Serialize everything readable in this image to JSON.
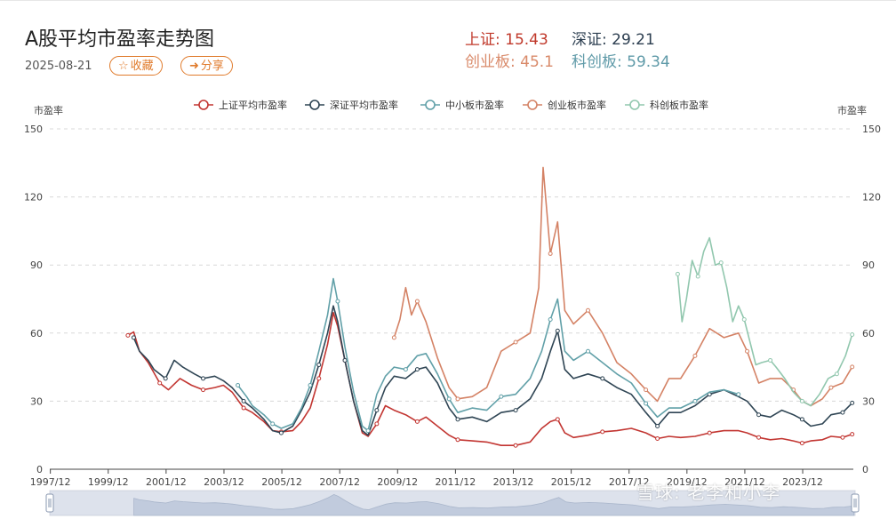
{
  "header": {
    "title": "A股平均市盈率走势图",
    "date": "2025-08-21",
    "favorite_label": "收藏",
    "share_label": "分享"
  },
  "stats": [
    {
      "label": "上证:",
      "value": "15.43",
      "color": "#c0392b"
    },
    {
      "label": "深证:",
      "value": "29.21",
      "color": "#2c3e50"
    },
    {
      "label": "创业板:",
      "value": "45.1",
      "color": "#d98a6a"
    },
    {
      "label": "科创板:",
      "value": "59.34",
      "color": "#5f9aa8"
    }
  ],
  "watermark": "雪球: 老李和小李",
  "chart_data": {
    "type": "line",
    "ylabel_left": "市盈率",
    "ylabel_right": "市盈率",
    "ylim": [
      0,
      150
    ],
    "yticks": [
      0,
      30,
      60,
      90,
      120,
      150
    ],
    "xlim": [
      1997.9,
      2025.67
    ],
    "xtick_labels": [
      "1997/12",
      "1999/12",
      "2001/12",
      "2003/12",
      "2005/12",
      "2007/12",
      "2009/12",
      "2011/12",
      "2013/12",
      "2015/12",
      "2017/12",
      "2019/12",
      "2021/12",
      "2023/12"
    ],
    "xtick_values": [
      1997.92,
      1999.92,
      2001.92,
      2003.92,
      2005.92,
      2007.92,
      2009.92,
      2011.92,
      2013.92,
      2015.92,
      2017.92,
      2019.92,
      2021.92,
      2023.92
    ],
    "grid": true,
    "legend_position": "top",
    "series": [
      {
        "name": "上证平均市盈率",
        "color": "#c23531",
        "points": [
          [
            2000.6,
            59
          ],
          [
            2000.8,
            60.5
          ],
          [
            2001.0,
            52
          ],
          [
            2001.3,
            47
          ],
          [
            2001.7,
            38
          ],
          [
            2002.0,
            35
          ],
          [
            2002.4,
            40
          ],
          [
            2002.8,
            37
          ],
          [
            2003.2,
            35
          ],
          [
            2003.6,
            36
          ],
          [
            2003.9,
            37
          ],
          [
            2004.2,
            34
          ],
          [
            2004.6,
            27
          ],
          [
            2004.9,
            25
          ],
          [
            2005.3,
            21
          ],
          [
            2005.6,
            17
          ],
          [
            2005.9,
            16.5
          ],
          [
            2006.3,
            17
          ],
          [
            2006.6,
            21
          ],
          [
            2006.9,
            27
          ],
          [
            2007.2,
            40
          ],
          [
            2007.5,
            55
          ],
          [
            2007.7,
            69
          ],
          [
            2007.85,
            63
          ],
          [
            2008.1,
            48
          ],
          [
            2008.4,
            30
          ],
          [
            2008.7,
            16
          ],
          [
            2008.9,
            14.5
          ],
          [
            2009.2,
            20
          ],
          [
            2009.5,
            28
          ],
          [
            2009.8,
            26
          ],
          [
            2010.2,
            24
          ],
          [
            2010.6,
            21
          ],
          [
            2010.9,
            23
          ],
          [
            2011.3,
            19
          ],
          [
            2011.7,
            15
          ],
          [
            2012.0,
            13
          ],
          [
            2012.5,
            12.5
          ],
          [
            2013.0,
            12
          ],
          [
            2013.5,
            10.5
          ],
          [
            2014.0,
            10.5
          ],
          [
            2014.5,
            12
          ],
          [
            2014.9,
            18
          ],
          [
            2015.2,
            21
          ],
          [
            2015.45,
            22
          ],
          [
            2015.7,
            16
          ],
          [
            2016.0,
            14
          ],
          [
            2016.5,
            15
          ],
          [
            2017.0,
            16.5
          ],
          [
            2017.5,
            17
          ],
          [
            2018.0,
            18
          ],
          [
            2018.5,
            16
          ],
          [
            2018.9,
            13.5
          ],
          [
            2019.3,
            14.5
          ],
          [
            2019.7,
            14
          ],
          [
            2020.2,
            14.5
          ],
          [
            2020.7,
            16
          ],
          [
            2021.2,
            17
          ],
          [
            2021.7,
            17
          ],
          [
            2022.0,
            16
          ],
          [
            2022.4,
            14
          ],
          [
            2022.8,
            13
          ],
          [
            2023.2,
            13.5
          ],
          [
            2023.6,
            12.5
          ],
          [
            2023.9,
            11.5
          ],
          [
            2024.2,
            12.5
          ],
          [
            2024.6,
            13
          ],
          [
            2024.9,
            14.5
          ],
          [
            2025.3,
            14
          ],
          [
            2025.63,
            15.43
          ]
        ]
      },
      {
        "name": "深证平均市盈率",
        "color": "#2f4554",
        "points": [
          [
            2000.8,
            58
          ],
          [
            2001.0,
            52
          ],
          [
            2001.3,
            48
          ],
          [
            2001.5,
            44
          ],
          [
            2001.9,
            40
          ],
          [
            2002.2,
            48
          ],
          [
            2002.5,
            45
          ],
          [
            2002.9,
            42
          ],
          [
            2003.2,
            40
          ],
          [
            2003.6,
            41
          ],
          [
            2003.9,
            39
          ],
          [
            2004.2,
            36
          ],
          [
            2004.6,
            30
          ],
          [
            2004.9,
            27
          ],
          [
            2005.3,
            22
          ],
          [
            2005.6,
            17
          ],
          [
            2005.9,
            16
          ],
          [
            2006.3,
            19
          ],
          [
            2006.6,
            26
          ],
          [
            2006.9,
            34
          ],
          [
            2007.2,
            46
          ],
          [
            2007.5,
            60
          ],
          [
            2007.7,
            72
          ],
          [
            2007.85,
            65
          ],
          [
            2008.1,
            48
          ],
          [
            2008.4,
            30
          ],
          [
            2008.7,
            17
          ],
          [
            2008.9,
            15
          ],
          [
            2009.2,
            26
          ],
          [
            2009.5,
            36
          ],
          [
            2009.8,
            41
          ],
          [
            2010.2,
            40
          ],
          [
            2010.6,
            44
          ],
          [
            2010.9,
            45
          ],
          [
            2011.3,
            38
          ],
          [
            2011.7,
            27
          ],
          [
            2012.0,
            22
          ],
          [
            2012.5,
            23
          ],
          [
            2013.0,
            21
          ],
          [
            2013.5,
            25
          ],
          [
            2014.0,
            26
          ],
          [
            2014.5,
            31
          ],
          [
            2014.9,
            40
          ],
          [
            2015.2,
            52
          ],
          [
            2015.45,
            61
          ],
          [
            2015.7,
            44
          ],
          [
            2016.0,
            40
          ],
          [
            2016.5,
            42
          ],
          [
            2017.0,
            40
          ],
          [
            2017.5,
            36
          ],
          [
            2018.0,
            33
          ],
          [
            2018.5,
            25
          ],
          [
            2018.9,
            19
          ],
          [
            2019.3,
            25
          ],
          [
            2019.7,
            25
          ],
          [
            2020.2,
            28
          ],
          [
            2020.7,
            33
          ],
          [
            2021.2,
            35
          ],
          [
            2021.7,
            32
          ],
          [
            2022.0,
            30
          ],
          [
            2022.4,
            24
          ],
          [
            2022.8,
            23
          ],
          [
            2023.2,
            26
          ],
          [
            2023.6,
            24
          ],
          [
            2023.9,
            22
          ],
          [
            2024.2,
            19
          ],
          [
            2024.6,
            20
          ],
          [
            2024.9,
            24
          ],
          [
            2025.3,
            25
          ],
          [
            2025.63,
            29.21
          ]
        ]
      },
      {
        "name": "中小板市盈率",
        "color": "#61a0a8",
        "points": [
          [
            2004.4,
            37
          ],
          [
            2004.7,
            32
          ],
          [
            2004.9,
            28
          ],
          [
            2005.3,
            24
          ],
          [
            2005.6,
            20
          ],
          [
            2005.9,
            18
          ],
          [
            2006.3,
            20
          ],
          [
            2006.6,
            27
          ],
          [
            2006.9,
            37
          ],
          [
            2007.2,
            52
          ],
          [
            2007.5,
            68
          ],
          [
            2007.7,
            84
          ],
          [
            2007.85,
            74
          ],
          [
            2008.1,
            54
          ],
          [
            2008.4,
            34
          ],
          [
            2008.7,
            19
          ],
          [
            2008.9,
            17
          ],
          [
            2009.2,
            33
          ],
          [
            2009.5,
            41
          ],
          [
            2009.8,
            45
          ],
          [
            2010.2,
            44
          ],
          [
            2010.6,
            50
          ],
          [
            2010.9,
            51
          ],
          [
            2011.3,
            42
          ],
          [
            2011.7,
            31
          ],
          [
            2012.0,
            25
          ],
          [
            2012.5,
            27
          ],
          [
            2013.0,
            26
          ],
          [
            2013.5,
            32
          ],
          [
            2014.0,
            33
          ],
          [
            2014.5,
            40
          ],
          [
            2014.9,
            52
          ],
          [
            2015.2,
            66
          ],
          [
            2015.45,
            75
          ],
          [
            2015.7,
            52
          ],
          [
            2016.0,
            48
          ],
          [
            2016.5,
            52
          ],
          [
            2017.0,
            47
          ],
          [
            2017.5,
            42
          ],
          [
            2018.0,
            38
          ],
          [
            2018.5,
            29
          ],
          [
            2018.9,
            23
          ],
          [
            2019.3,
            27
          ],
          [
            2019.7,
            27
          ],
          [
            2020.2,
            30
          ],
          [
            2020.7,
            34
          ],
          [
            2021.2,
            35
          ],
          [
            2021.7,
            33
          ]
        ]
      },
      {
        "name": "创业板市盈率",
        "color": "#d48265",
        "points": [
          [
            2009.8,
            58
          ],
          [
            2010.0,
            66
          ],
          [
            2010.2,
            80
          ],
          [
            2010.4,
            68
          ],
          [
            2010.6,
            74
          ],
          [
            2010.9,
            65
          ],
          [
            2011.3,
            49
          ],
          [
            2011.7,
            36
          ],
          [
            2012.0,
            31
          ],
          [
            2012.5,
            32
          ],
          [
            2013.0,
            36
          ],
          [
            2013.5,
            52
          ],
          [
            2014.0,
            56
          ],
          [
            2014.5,
            60
          ],
          [
            2014.8,
            80
          ],
          [
            2014.95,
            133
          ],
          [
            2015.2,
            95
          ],
          [
            2015.45,
            109
          ],
          [
            2015.7,
            70
          ],
          [
            2016.0,
            64
          ],
          [
            2016.5,
            70
          ],
          [
            2017.0,
            60
          ],
          [
            2017.5,
            47
          ],
          [
            2018.0,
            42
          ],
          [
            2018.5,
            35
          ],
          [
            2018.9,
            30
          ],
          [
            2019.3,
            40
          ],
          [
            2019.7,
            40
          ],
          [
            2020.2,
            50
          ],
          [
            2020.7,
            62
          ],
          [
            2021.2,
            58
          ],
          [
            2021.7,
            60
          ],
          [
            2022.0,
            52
          ],
          [
            2022.4,
            38
          ],
          [
            2022.8,
            40
          ],
          [
            2023.2,
            40
          ],
          [
            2023.6,
            35
          ],
          [
            2023.9,
            30
          ],
          [
            2024.2,
            28
          ],
          [
            2024.6,
            31
          ],
          [
            2024.9,
            36
          ],
          [
            2025.3,
            38
          ],
          [
            2025.63,
            45.1
          ]
        ]
      },
      {
        "name": "科创板市盈率",
        "color": "#91c7ae",
        "points": [
          [
            2019.6,
            86
          ],
          [
            2019.75,
            65
          ],
          [
            2019.9,
            75
          ],
          [
            2020.1,
            92
          ],
          [
            2020.3,
            85
          ],
          [
            2020.5,
            96
          ],
          [
            2020.7,
            102
          ],
          [
            2020.9,
            90
          ],
          [
            2021.1,
            91
          ],
          [
            2021.3,
            80
          ],
          [
            2021.5,
            65
          ],
          [
            2021.7,
            72
          ],
          [
            2021.9,
            66
          ],
          [
            2022.1,
            56
          ],
          [
            2022.3,
            46
          ],
          [
            2022.5,
            47
          ],
          [
            2022.8,
            48
          ],
          [
            2023.0,
            45
          ],
          [
            2023.3,
            40
          ],
          [
            2023.6,
            34
          ],
          [
            2023.9,
            30
          ],
          [
            2024.2,
            28
          ],
          [
            2024.5,
            33
          ],
          [
            2024.8,
            40
          ],
          [
            2025.1,
            42
          ],
          [
            2025.4,
            50
          ],
          [
            2025.63,
            59.34
          ]
        ]
      }
    ]
  },
  "zoom_slider": {
    "start": 0,
    "end": 100
  }
}
